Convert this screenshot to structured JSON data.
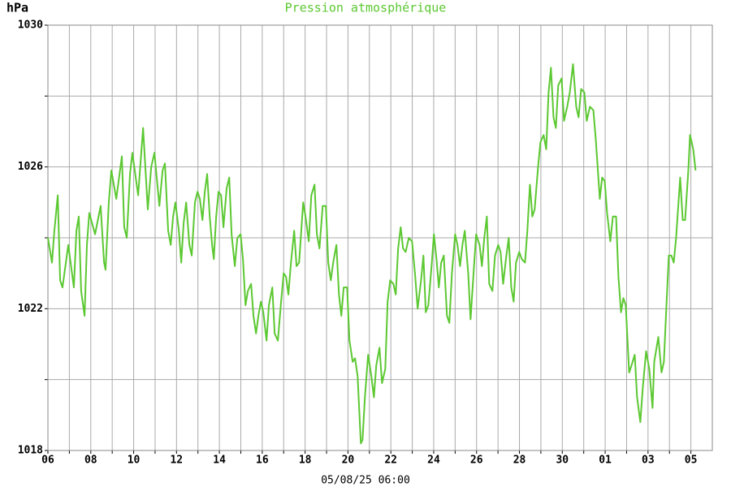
{
  "chart_data": {
    "type": "line",
    "title": "Pression atmosphérique",
    "y_unit": "hPa",
    "x_label": "05/08/25 06:00",
    "color": "#5cc832",
    "grid": true,
    "xlim": [
      0,
      31
    ],
    "ylim": [
      1018,
      1030
    ],
    "xticks": [
      {
        "value": 0,
        "label": "06"
      },
      {
        "value": 1,
        "label": null
      },
      {
        "value": 2,
        "label": "08"
      },
      {
        "value": 3,
        "label": null
      },
      {
        "value": 4,
        "label": "10"
      },
      {
        "value": 5,
        "label": null
      },
      {
        "value": 6,
        "label": "12"
      },
      {
        "value": 7,
        "label": null
      },
      {
        "value": 8,
        "label": "14"
      },
      {
        "value": 9,
        "label": null
      },
      {
        "value": 10,
        "label": "16"
      },
      {
        "value": 11,
        "label": null
      },
      {
        "value": 12,
        "label": "18"
      },
      {
        "value": 13,
        "label": null
      },
      {
        "value": 14,
        "label": "20"
      },
      {
        "value": 15,
        "label": null
      },
      {
        "value": 16,
        "label": "22"
      },
      {
        "value": 17,
        "label": null
      },
      {
        "value": 18,
        "label": "24"
      },
      {
        "value": 19,
        "label": null
      },
      {
        "value": 20,
        "label": "26"
      },
      {
        "value": 21,
        "label": null
      },
      {
        "value": 22,
        "label": "28"
      },
      {
        "value": 23,
        "label": null
      },
      {
        "value": 24,
        "label": "30"
      },
      {
        "value": 25,
        "label": null
      },
      {
        "value": 26,
        "label": "01"
      },
      {
        "value": 27,
        "label": null
      },
      {
        "value": 28,
        "label": "03"
      },
      {
        "value": 29,
        "label": null
      },
      {
        "value": 30,
        "label": "05"
      }
    ],
    "yticks": [
      1018,
      {
        "value": 1020,
        "label": null
      },
      1022,
      {
        "value": 1024,
        "label": null
      },
      1026,
      {
        "value": 1028,
        "label": null
      },
      1030
    ],
    "x": [
      0,
      0.19,
      0.3,
      0.46,
      0.57,
      0.68,
      0.95,
      1.21,
      1.33,
      1.44,
      1.55,
      1.71,
      1.82,
      1.93,
      2.2,
      2.46,
      2.62,
      2.69,
      2.84,
      2.96,
      3.19,
      3.45,
      3.56,
      3.68,
      3.83,
      3.94,
      4.21,
      4.44,
      4.66,
      4.82,
      4.97,
      5.2,
      5.35,
      5.46,
      5.61,
      5.73,
      5.84,
      5.95,
      6.11,
      6.22,
      6.33,
      6.45,
      6.6,
      6.71,
      6.86,
      6.98,
      7.09,
      7.21,
      7.32,
      7.43,
      7.55,
      7.66,
      7.74,
      7.85,
      7.96,
      8.08,
      8.19,
      8.34,
      8.46,
      8.57,
      8.72,
      8.84,
      8.99,
      9.1,
      9.22,
      9.33,
      9.48,
      9.59,
      9.71,
      9.82,
      9.94,
      10.05,
      10.2,
      10.31,
      10.47,
      10.58,
      10.73,
      10.88,
      11,
      11.11,
      11.22,
      11.34,
      11.49,
      11.6,
      11.72,
      11.91,
      12.02,
      12.17,
      12.29,
      12.44,
      12.55,
      12.67,
      12.82,
      12.97,
      13.08,
      13.2,
      13.31,
      13.46,
      13.58,
      13.69,
      13.8,
      13.96,
      14.07,
      14.22,
      14.33,
      14.45,
      14.6,
      14.68,
      14.79,
      14.94,
      15.09,
      15.21,
      15.32,
      15.47,
      15.59,
      15.74,
      15.85,
      15.97,
      16.12,
      16.23,
      16.34,
      16.46,
      16.57,
      16.69,
      16.84,
      16.99,
      17.14,
      17.25,
      17.41,
      17.52,
      17.63,
      17.75,
      17.9,
      18.01,
      18.13,
      18.24,
      18.35,
      18.47,
      18.62,
      18.73,
      18.85,
      19,
      19.11,
      19.23,
      19.34,
      19.45,
      19.61,
      19.72,
      19.87,
      19.98,
      20.14,
      20.25,
      20.36,
      20.48,
      20.59,
      20.74,
      20.86,
      21.01,
      21.12,
      21.24,
      21.39,
      21.5,
      21.62,
      21.73,
      21.84,
      21.99,
      22.11,
      22.26,
      22.37,
      22.49,
      22.6,
      22.71,
      22.87,
      22.98,
      23.13,
      23.25,
      23.36,
      23.47,
      23.59,
      23.7,
      23.81,
      23.97,
      24.08,
      24.23,
      24.35,
      24.5,
      24.65,
      24.76,
      24.88,
      25.03,
      25.14,
      25.29,
      25.45,
      25.56,
      25.75,
      25.86,
      25.98,
      26.09,
      26.24,
      26.36,
      26.51,
      26.62,
      26.74,
      26.85,
      26.96,
      27.12,
      27.23,
      27.38,
      27.49,
      27.64,
      27.76,
      27.91,
      28.06,
      28.21,
      28.29,
      28.48,
      28.63,
      28.74,
      28.86,
      28.97,
      29.09,
      29.2,
      29.31,
      29.5,
      29.62,
      29.73,
      29.88,
      29.96,
      30.11,
      30.22
    ],
    "values": [
      1024,
      1023.3,
      1024.2,
      1025.2,
      1022.8,
      1022.6,
      1023.8,
      1022.6,
      1024.2,
      1024.6,
      1022.5,
      1021.8,
      1023.8,
      1024.7,
      1024.1,
      1024.9,
      1023.3,
      1023.1,
      1025,
      1025.9,
      1025.1,
      1026.3,
      1024.3,
      1024,
      1025.8,
      1026.4,
      1025.2,
      1027.1,
      1024.8,
      1026,
      1026.4,
      1024.9,
      1025.9,
      1026.1,
      1024.2,
      1023.8,
      1024.6,
      1025,
      1024.2,
      1023.3,
      1024.4,
      1025,
      1023.8,
      1023.5,
      1025,
      1025.3,
      1025.1,
      1024.5,
      1025.3,
      1025.8,
      1024.6,
      1023.8,
      1023.4,
      1024.6,
      1025.3,
      1025.2,
      1024.3,
      1025.4,
      1025.7,
      1024.1,
      1023.2,
      1024,
      1024.1,
      1023.4,
      1022.1,
      1022.5,
      1022.7,
      1021.8,
      1021.3,
      1021.8,
      1022.2,
      1021.9,
      1021.1,
      1022.1,
      1022.6,
      1021.3,
      1021.1,
      1022.2,
      1023,
      1022.9,
      1022.4,
      1023.3,
      1024.2,
      1023.2,
      1023.3,
      1025,
      1024.6,
      1023.9,
      1025.2,
      1025.5,
      1024.1,
      1023.7,
      1024.9,
      1024.9,
      1023.3,
      1022.8,
      1023.3,
      1023.8,
      1022.4,
      1021.8,
      1022.6,
      1022.6,
      1021.1,
      1020.5,
      1020.6,
      1020.1,
      1018.2,
      1018.3,
      1019.5,
      1020.7,
      1020.1,
      1019.5,
      1020.4,
      1020.9,
      1019.9,
      1020.3,
      1022.2,
      1022.8,
      1022.7,
      1022.4,
      1023.7,
      1024.3,
      1023.7,
      1023.6,
      1024,
      1023.9,
      1022.9,
      1022,
      1022.8,
      1023.5,
      1021.9,
      1022.1,
      1023.2,
      1024.1,
      1023.4,
      1022.6,
      1023.3,
      1023.5,
      1021.8,
      1021.6,
      1023,
      1024.1,
      1023.8,
      1023.2,
      1023.8,
      1024.2,
      1023,
      1021.7,
      1023.1,
      1024.1,
      1023.8,
      1023.2,
      1024,
      1024.6,
      1022.7,
      1022.5,
      1023.5,
      1023.8,
      1023.6,
      1022.7,
      1023.5,
      1024,
      1022.6,
      1022.2,
      1023.3,
      1023.6,
      1023.4,
      1023.3,
      1024.2,
      1025.5,
      1024.6,
      1024.8,
      1026,
      1026.7,
      1026.9,
      1026.5,
      1028.1,
      1028.8,
      1027.4,
      1027.1,
      1028.3,
      1028.5,
      1027.3,
      1027.7,
      1028.1,
      1028.9,
      1027.7,
      1027.4,
      1028.2,
      1028.1,
      1027.3,
      1027.7,
      1027.6,
      1026.8,
      1025.1,
      1025.7,
      1025.6,
      1024.7,
      1023.9,
      1024.6,
      1024.6,
      1022.9,
      1021.9,
      1022.3,
      1022.1,
      1020.2,
      1020.4,
      1020.7,
      1019.5,
      1018.8,
      1019.8,
      1020.8,
      1020.3,
      1019.2,
      1020.5,
      1021.2,
      1020.2,
      1020.5,
      1022.1,
      1023.5,
      1023.5,
      1023.3,
      1024,
      1025.7,
      1024.5,
      1024.5,
      1025.9,
      1026.9,
      1026.5,
      1025.9
    ]
  }
}
